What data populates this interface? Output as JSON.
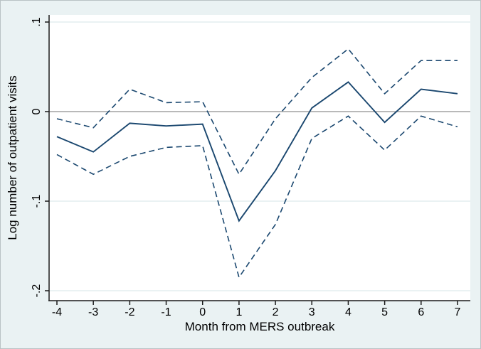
{
  "figure": {
    "background_color": "#eaf2f3",
    "plot_background_color": "#ffffff",
    "line_color": "#1a476f",
    "zero_line_color": "#8f8f8f",
    "gridline_color": "#e4edef",
    "axis_color": "#1a1a1a",
    "text_color": "#000000"
  },
  "chart_data": {
    "type": "line",
    "title": "",
    "xlabel": "Month from MERS outbreak",
    "ylabel": "Log number of outpatient visits",
    "x": [
      -4,
      -3,
      -2,
      -1,
      0,
      1,
      2,
      3,
      4,
      5,
      6,
      7
    ],
    "x_tick_labels": [
      "-4",
      "-3",
      "-2",
      "-1",
      "0",
      "1",
      "2",
      "3",
      "4",
      "5",
      "6",
      "7"
    ],
    "y_tick_values": [
      0.1,
      0,
      -0.1,
      -0.2
    ],
    "y_tick_labels": [
      ".1",
      "0",
      "-.1",
      "-.2"
    ],
    "xlim": [
      -4.2,
      7.35
    ],
    "ylim": [
      -0.211,
      0.108
    ],
    "grid": true,
    "legend": "none",
    "reference_line_y": 0,
    "series": [
      {
        "name": "point-estimate",
        "style": "solid",
        "values": [
          -0.028,
          -0.045,
          -0.013,
          -0.016,
          -0.014,
          -0.122,
          -0.066,
          0.004,
          0.033,
          -0.012,
          0.025,
          0.02
        ]
      },
      {
        "name": "upper-95ci",
        "style": "dashed",
        "values": [
          -0.008,
          -0.018,
          0.025,
          0.01,
          0.011,
          -0.07,
          -0.008,
          0.038,
          0.07,
          0.02,
          0.057,
          0.057
        ]
      },
      {
        "name": "lower-95ci",
        "style": "dashed",
        "values": [
          -0.048,
          -0.07,
          -0.05,
          -0.04,
          -0.038,
          -0.185,
          -0.126,
          -0.03,
          -0.005,
          -0.043,
          -0.005,
          -0.017
        ]
      }
    ]
  }
}
